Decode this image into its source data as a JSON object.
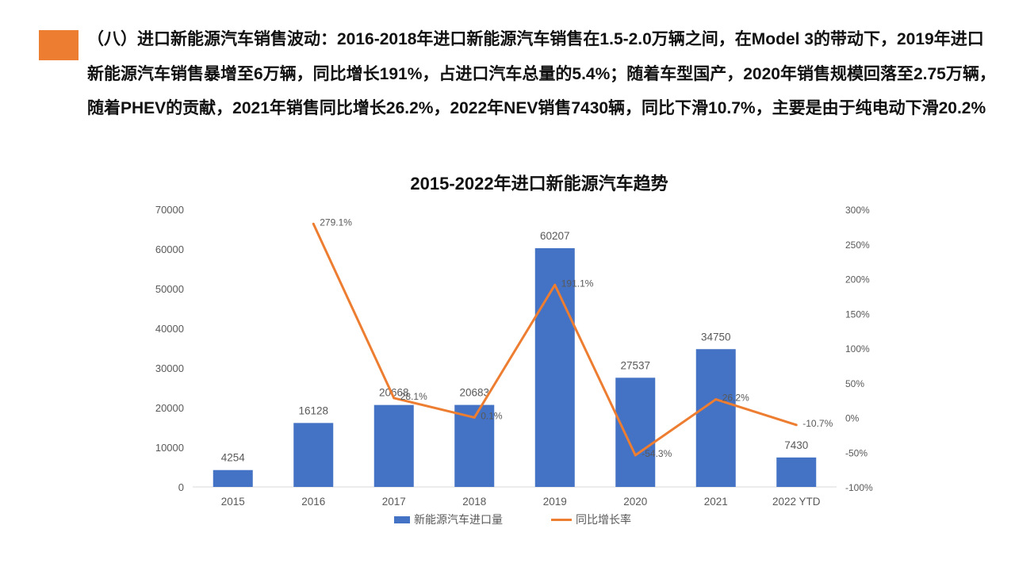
{
  "paragraph": "（八）进口新能源汽车销售波动：2016-2018年进口新能源汽车销售在1.5-2.0万辆之间，在Model 3的带动下，2019年进口新能源汽车销售暴增至6万辆，同比增长191%，占进口汽车总量的5.4%；随着车型国产，2020年销售规模回落至2.75万辆，随着PHEV的贡献，2021年销售同比增长26.2%，2022年NEV销售7430辆，同比下滑10.7%，主要是由于纯电动下滑20.2%",
  "colors": {
    "accent": "#ED7D31",
    "bar": "#4472C4",
    "line": "#ED7D31",
    "axis_text": "#595959",
    "gridline": "#D9D9D9"
  },
  "chart_data": {
    "type": "bar",
    "title": "2015-2022年进口新能源汽车趋势",
    "categories": [
      "2015",
      "2016",
      "2017",
      "2018",
      "2019",
      "2020",
      "2021",
      "2022 YTD"
    ],
    "series": [
      {
        "name": "新能源汽车进口量",
        "type": "bar",
        "axis": "left",
        "values": [
          4254,
          16128,
          20668,
          20683,
          60207,
          27537,
          34750,
          7430
        ],
        "labels": [
          "4254",
          "16128",
          "20668",
          "20683",
          "60207",
          "27537",
          "34750",
          "7430"
        ]
      },
      {
        "name": "同比增长率",
        "type": "line",
        "axis": "right",
        "values": [
          null,
          279.1,
          28.1,
          0.1,
          191.1,
          -54.3,
          26.2,
          -10.7
        ],
        "labels": [
          "",
          "279.1%",
          "28.1%",
          "0.1%",
          "191.1%",
          "-54.3%",
          "26.2%",
          "-10.7%"
        ]
      }
    ],
    "y_left": {
      "min": 0,
      "max": 70000,
      "ticks": [
        0,
        10000,
        20000,
        30000,
        40000,
        50000,
        60000,
        70000
      ],
      "tick_labels": [
        "0",
        "10000",
        "20000",
        "30000",
        "40000",
        "50000",
        "60000",
        "70000"
      ]
    },
    "y_right": {
      "min": -100,
      "max": 300,
      "ticks": [
        -100,
        -50,
        0,
        50,
        100,
        150,
        200,
        250,
        300
      ],
      "tick_labels": [
        "-100%",
        "-50%",
        "0%",
        "50%",
        "100%",
        "150%",
        "200%",
        "250%",
        "300%"
      ]
    },
    "grid": false,
    "legend_position": "bottom"
  }
}
